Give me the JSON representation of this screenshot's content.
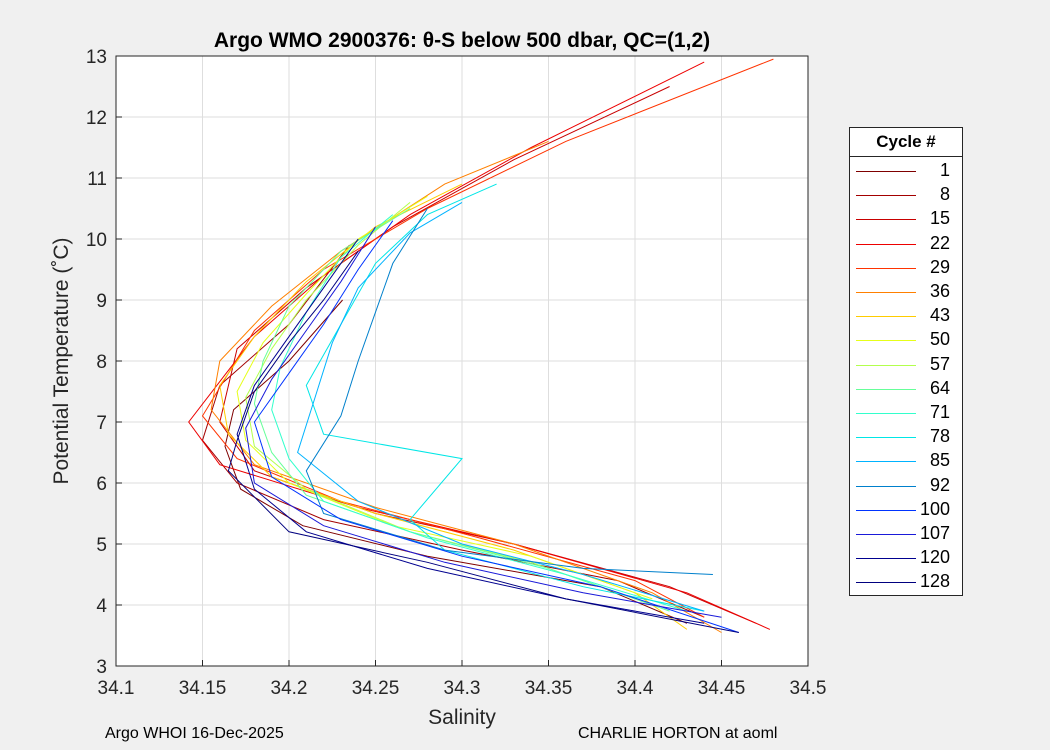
{
  "chart_data": {
    "type": "line",
    "title": "Argo WMO 2900376: θ-S below 500 dbar,  QC=(1,2)",
    "xlabel": "Salinity",
    "ylabel": "Potential Temperature (˚C)",
    "xlim": [
      34.1,
      34.5
    ],
    "ylim": [
      3,
      13
    ],
    "xticks": [
      "34.1",
      "34.15",
      "34.2",
      "34.25",
      "34.3",
      "34.35",
      "34.4",
      "34.45",
      "34.5"
    ],
    "yticks": [
      "3",
      "4",
      "5",
      "6",
      "7",
      "8",
      "9",
      "10",
      "11",
      "12",
      "13"
    ],
    "grid": true,
    "legend_title": "Cycle #",
    "legend_position": "right-outside",
    "series": [
      {
        "name": "1",
        "color": "#7f0000",
        "s": [
          34.231,
          34.2,
          34.168,
          34.163,
          34.172,
          34.208,
          34.28,
          34.38,
          34.43
        ],
        "t": [
          9.0,
          8.0,
          7.2,
          6.6,
          5.9,
          5.3,
          4.8,
          4.3,
          3.7
        ]
      },
      {
        "name": "8",
        "color": "#a30000",
        "s": [
          34.235,
          34.2,
          34.16,
          34.15,
          34.17,
          34.22,
          34.3,
          34.39,
          34.44
        ],
        "t": [
          9.9,
          8.6,
          7.6,
          6.7,
          6.0,
          5.4,
          4.9,
          4.4,
          3.8
        ]
      },
      {
        "name": "15",
        "color": "#c80000",
        "s": [
          34.42,
          34.33,
          34.26,
          34.21,
          34.17,
          34.16,
          34.18,
          34.25,
          34.33,
          34.42,
          34.47
        ],
        "t": [
          12.5,
          11.3,
          10.2,
          9.2,
          8.2,
          7.0,
          6.2,
          5.5,
          5.0,
          4.3,
          3.7
        ]
      },
      {
        "name": "22",
        "color": "#ed0000",
        "s": [
          34.44,
          34.34,
          34.27,
          34.22,
          34.18,
          34.142,
          34.16,
          34.24,
          34.33,
          34.43,
          34.478
        ],
        "t": [
          12.9,
          11.5,
          10.4,
          9.4,
          8.4,
          7.0,
          6.3,
          5.6,
          5.0,
          4.2,
          3.6
        ]
      },
      {
        "name": "29",
        "color": "#ff3300",
        "s": [
          34.48,
          34.36,
          34.28,
          34.22,
          34.18,
          34.15,
          34.17,
          34.23,
          34.31,
          34.4,
          34.44
        ],
        "t": [
          12.95,
          11.6,
          10.5,
          9.5,
          8.5,
          7.1,
          6.4,
          5.7,
          5.1,
          4.4,
          3.8
        ]
      },
      {
        "name": "36",
        "color": "#ff8000",
        "s": [
          34.35,
          34.29,
          34.23,
          34.19,
          34.16,
          34.155,
          34.18,
          34.25,
          34.33,
          34.41,
          34.45
        ],
        "t": [
          11.6,
          10.9,
          9.8,
          8.9,
          8.0,
          7.2,
          6.3,
          5.6,
          5.0,
          4.2,
          3.55
        ]
      },
      {
        "name": "43",
        "color": "#ffcc00",
        "s": [
          34.3,
          34.25,
          34.21,
          34.18,
          34.16,
          34.165,
          34.19,
          34.25,
          34.33,
          34.4,
          34.43
        ],
        "t": [
          10.9,
          10.2,
          9.3,
          8.4,
          7.6,
          6.8,
          6.1,
          5.5,
          4.9,
          4.2,
          3.6
        ]
      },
      {
        "name": "50",
        "color": "#e6ff19",
        "s": [
          34.28,
          34.24,
          34.21,
          34.185,
          34.17,
          34.175,
          34.2,
          34.26,
          34.34,
          34.41
        ],
        "t": [
          10.7,
          10.0,
          9.1,
          8.3,
          7.5,
          6.7,
          6.0,
          5.3,
          4.8,
          4.1
        ]
      },
      {
        "name": "57",
        "color": "#b3ff4d",
        "s": [
          34.27,
          34.24,
          34.21,
          34.19,
          34.175,
          34.18,
          34.21,
          34.27,
          34.34,
          34.41
        ],
        "t": [
          10.6,
          9.9,
          9.0,
          8.2,
          7.4,
          6.6,
          5.9,
          5.2,
          4.7,
          4.0
        ]
      },
      {
        "name": "64",
        "color": "#66ff99",
        "s": [
          34.27,
          34.23,
          34.2,
          34.185,
          34.18,
          34.19,
          34.21,
          34.27,
          34.35,
          34.42
        ],
        "t": [
          10.5,
          9.8,
          8.9,
          8.0,
          7.3,
          6.5,
          5.8,
          5.2,
          4.6,
          3.9
        ]
      },
      {
        "name": "71",
        "color": "#33ffcc",
        "s": [
          34.26,
          34.23,
          34.21,
          34.195,
          34.19,
          34.2,
          34.22,
          34.28,
          34.36,
          34.43
        ],
        "t": [
          10.4,
          9.7,
          8.8,
          7.9,
          7.2,
          6.4,
          5.7,
          5.1,
          4.5,
          3.9
        ]
      },
      {
        "name": "78",
        "color": "#00e6e6",
        "s": [
          34.32,
          34.28,
          34.25,
          34.23,
          34.21,
          34.22,
          34.3,
          34.27,
          34.29,
          34.37,
          34.44
        ],
        "t": [
          10.9,
          10.4,
          9.6,
          8.6,
          7.6,
          6.8,
          6.4,
          5.4,
          4.9,
          4.3,
          3.9
        ]
      },
      {
        "name": "85",
        "color": "#00b3ff",
        "s": [
          34.3,
          34.27,
          34.24,
          34.225,
          34.215,
          34.205,
          34.24,
          34.3,
          34.37,
          34.44
        ],
        "t": [
          10.6,
          10.1,
          9.2,
          8.3,
          7.4,
          6.5,
          5.7,
          5.0,
          4.5,
          3.9
        ]
      },
      {
        "name": "92",
        "color": "#0080cc",
        "s": [
          34.28,
          34.26,
          34.25,
          34.24,
          34.23,
          34.21,
          34.22,
          34.29,
          34.37,
          34.445
        ],
        "t": [
          10.5,
          9.6,
          8.8,
          8.0,
          7.1,
          6.2,
          5.5,
          4.9,
          4.6,
          4.5
        ]
      },
      {
        "name": "100",
        "color": "#0033ff",
        "s": [
          34.26,
          34.24,
          34.22,
          34.2,
          34.18,
          34.19,
          34.23,
          34.3,
          34.38,
          34.46
        ],
        "t": [
          10.3,
          9.5,
          8.6,
          7.8,
          7.0,
          6.1,
          5.4,
          4.8,
          4.3,
          3.55
        ]
      },
      {
        "name": "107",
        "color": "#1a1ad9",
        "s": [
          34.25,
          34.23,
          34.21,
          34.19,
          34.175,
          34.18,
          34.22,
          34.29,
          34.37,
          34.45
        ],
        "t": [
          10.2,
          9.3,
          8.5,
          7.7,
          6.9,
          6.0,
          5.3,
          4.7,
          4.2,
          3.8
        ]
      },
      {
        "name": "120",
        "color": "#00008f",
        "s": [
          34.24,
          34.22,
          34.2,
          34.18,
          34.17,
          34.18,
          34.21,
          34.28,
          34.36,
          34.44
        ],
        "t": [
          10.0,
          9.2,
          8.4,
          7.6,
          6.8,
          5.9,
          5.2,
          4.6,
          4.1,
          3.7
        ]
      },
      {
        "name": "128",
        "color": "#00007f",
        "s": [
          34.24,
          34.22,
          34.2,
          34.18,
          34.17,
          34.165,
          34.2,
          34.28,
          34.36,
          34.46
        ],
        "t": [
          9.8,
          9.0,
          8.3,
          7.5,
          6.7,
          6.2,
          5.2,
          4.7,
          4.1,
          3.55
        ]
      }
    ]
  },
  "footer": {
    "left": "Argo WHOI 16-Dec-2025",
    "right": "CHARLIE HORTON at aoml"
  }
}
